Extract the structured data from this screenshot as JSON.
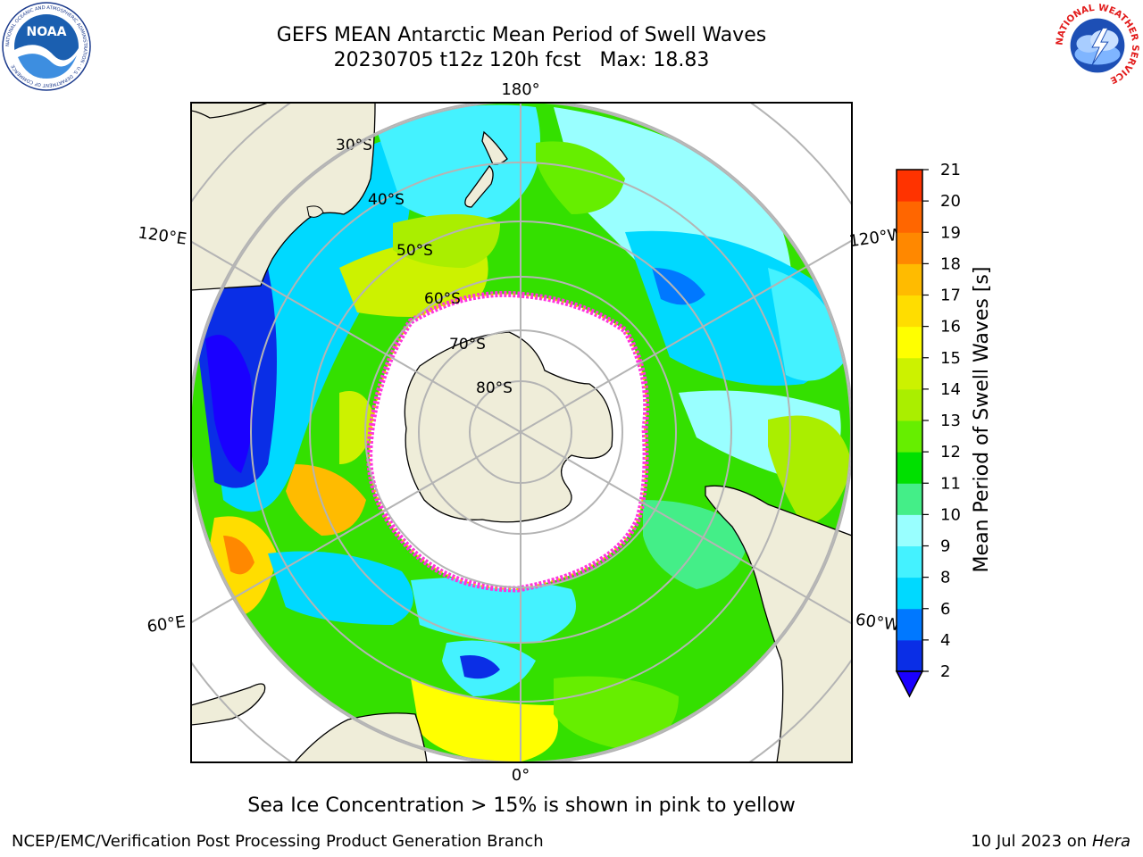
{
  "header": {
    "title_line1": "GEFS MEAN Antarctic Mean Period of Swell Waves",
    "title_line2": "20230705 t12z 120h fcst   Max: 18.83"
  },
  "logos": {
    "left": {
      "name": "noaa-logo",
      "text": "NOAA",
      "ring_text": "NATIONAL OCEANIC AND ATMOSPHERIC ADMINISTRATION · U.S. DEPARTMENT OF COMMERCE"
    },
    "right": {
      "name": "nws-logo",
      "ring_text": "NATIONAL WEATHER SERVICE"
    }
  },
  "map": {
    "projection": "south-polar-stereographic",
    "longitude_labels": {
      "top": "180°",
      "bottom": "0°",
      "upper_left": "120°E",
      "upper_right": "120°W",
      "lower_left": "60°E",
      "lower_right": "60°W"
    },
    "latitude_labels": [
      "30°S",
      "40°S",
      "50°S",
      "60°S",
      "70°S",
      "80°S"
    ],
    "colors": {
      "land": "#efedd9",
      "ice": "#ffffff",
      "ice_edge": "#ff33dd",
      "graticule": "#b4b4b4"
    }
  },
  "colorbar": {
    "label": "Mean Period of Swell Waves [s]",
    "ticks": [
      "2",
      "4",
      "6",
      "8",
      "9",
      "10",
      "11",
      "12",
      "13",
      "14",
      "15",
      "16",
      "17",
      "18",
      "19",
      "20",
      "21"
    ],
    "colors": [
      "#0a2ee6",
      "#0078ff",
      "#00d9ff",
      "#44f2ff",
      "#99ffff",
      "#44ee88",
      "#00e000",
      "#66ee00",
      "#aaee00",
      "#ccf200",
      "#ffff00",
      "#ffdd00",
      "#ffbb00",
      "#ff8800",
      "#ff6600",
      "#ff3300"
    ],
    "under_color": "#1a00ff",
    "extend": "min"
  },
  "caption": "Sea Ice Concentration > 15% is shown in pink to yellow",
  "footer": {
    "left": "NCEP/EMC/Verification Post Processing Product Generation Branch",
    "right_prefix": "10 Jul 2023 on ",
    "right_host": "Hera"
  }
}
